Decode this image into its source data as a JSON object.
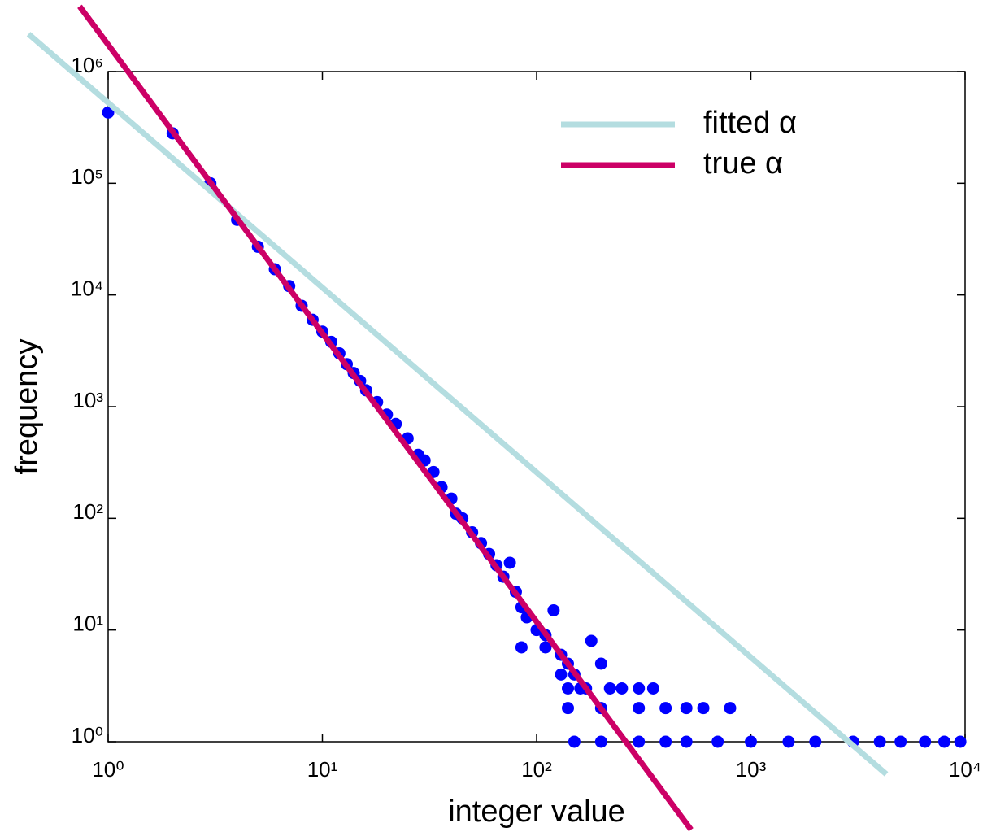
{
  "chart_data": {
    "type": "scatter",
    "xlabel": "integer value",
    "ylabel": "frequency",
    "xscale": "log",
    "yscale": "log",
    "xlim": [
      1,
      10000
    ],
    "ylim": [
      1,
      1000000
    ],
    "xticks": [
      {
        "value": 1,
        "label": "10⁰"
      },
      {
        "value": 10,
        "label": "10¹"
      },
      {
        "value": 100,
        "label": "10²"
      },
      {
        "value": 1000,
        "label": "10³"
      },
      {
        "value": 10000,
        "label": "10⁴"
      }
    ],
    "yticks": [
      {
        "value": 1,
        "label": "10⁰"
      },
      {
        "value": 10,
        "label": "10¹"
      },
      {
        "value": 100,
        "label": "10²"
      },
      {
        "value": 1000,
        "label": "10³"
      },
      {
        "value": 10000,
        "label": "10⁴"
      },
      {
        "value": 100000,
        "label": "10⁵"
      },
      {
        "value": 1000000,
        "label": "10⁶"
      }
    ],
    "color": "#0000ff",
    "x": [
      1,
      2,
      3,
      4,
      5,
      6,
      7,
      8,
      9,
      10,
      11,
      12,
      13,
      14,
      15,
      16,
      18,
      20,
      22,
      25,
      28,
      30,
      33,
      36,
      40,
      42,
      45,
      50,
      55,
      60,
      65,
      70,
      75,
      80,
      85,
      90,
      100,
      110,
      120,
      130,
      140,
      150,
      160,
      170,
      180,
      200,
      220,
      250,
      300,
      350,
      140,
      200,
      300,
      400,
      500,
      600,
      800,
      150,
      200,
      300,
      400,
      500,
      700,
      1000,
      1500,
      2000,
      3000,
      4000,
      5000,
      6500,
      8000,
      9500,
      85,
      110,
      130,
      140
    ],
    "values": [
      430000,
      280000,
      100000,
      47000,
      27000,
      17000,
      12000,
      8000,
      6000,
      4700,
      3800,
      3000,
      2400,
      2000,
      1700,
      1400,
      1100,
      850,
      700,
      520,
      370,
      330,
      260,
      190,
      150,
      110,
      100,
      75,
      60,
      48,
      38,
      30,
      40,
      22,
      16,
      13,
      10,
      9,
      15,
      6,
      5,
      4,
      3,
      3,
      8,
      5,
      3,
      3,
      3,
      3,
      2,
      2,
      2,
      2,
      2,
      2,
      2,
      1,
      1,
      1,
      1,
      1,
      1,
      1,
      1,
      1,
      1,
      1,
      1,
      1,
      1,
      1,
      7,
      7,
      4,
      3
    ],
    "legend": "upper right",
    "series": [
      {
        "name": "fitted α",
        "type": "line",
        "color": "#b4dde0",
        "x": [
          0.425,
          4290
        ],
        "values": [
          2170000,
          0.512
        ]
      },
      {
        "name": "true α",
        "type": "line",
        "color": "#cc0066",
        "x": [
          0.736,
          526
        ],
        "values": [
          3840000,
          0.163
        ]
      }
    ]
  }
}
